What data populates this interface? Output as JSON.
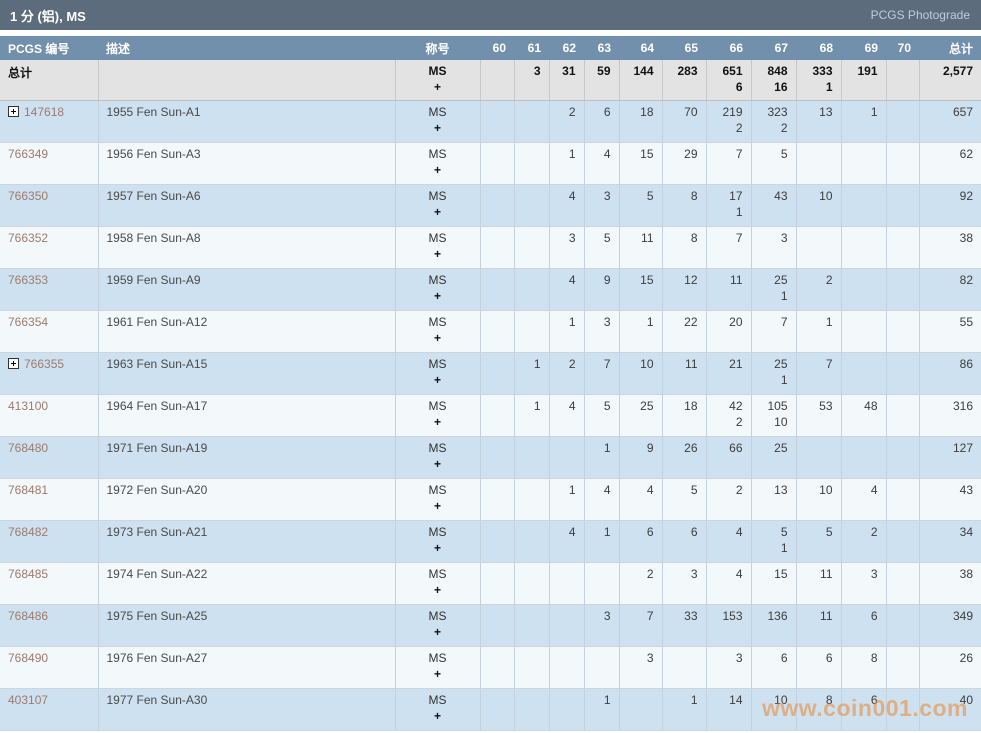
{
  "title_bar": {
    "title": "1 分 (铝), MS",
    "photograde_link": "PCGS Photograde"
  },
  "table": {
    "columns": {
      "pcgs_no": "PCGS 编号",
      "description": "描述",
      "designation": "称号",
      "grades": [
        "60",
        "61",
        "62",
        "63",
        "64",
        "65",
        "66",
        "67",
        "68",
        "69",
        "70"
      ],
      "total": "总计"
    },
    "designation_value": {
      "line1": "MS",
      "line2": "+"
    },
    "totals_row": {
      "label": "总计",
      "grades": [
        [
          "",
          ""
        ],
        [
          "3",
          ""
        ],
        [
          "31",
          ""
        ],
        [
          "59",
          ""
        ],
        [
          "144",
          ""
        ],
        [
          "283",
          ""
        ],
        [
          "651",
          "6"
        ],
        [
          "848",
          "16"
        ],
        [
          "333",
          "1"
        ],
        [
          "191",
          ""
        ],
        [
          "",
          ""
        ]
      ],
      "total": "2,577"
    },
    "rows": [
      {
        "pcgs_no": "147618",
        "expandable": true,
        "description": "1955 Fen Sun-A1",
        "grades": [
          [
            "",
            ""
          ],
          [
            "",
            ""
          ],
          [
            "2",
            ""
          ],
          [
            "6",
            ""
          ],
          [
            "18",
            ""
          ],
          [
            "70",
            ""
          ],
          [
            "219",
            "2"
          ],
          [
            "323",
            "2"
          ],
          [
            "13",
            ""
          ],
          [
            "1",
            ""
          ],
          [
            "",
            ""
          ]
        ],
        "total": "657"
      },
      {
        "pcgs_no": "766349",
        "expandable": false,
        "description": "1956 Fen Sun-A3",
        "grades": [
          [
            "",
            ""
          ],
          [
            "",
            ""
          ],
          [
            "1",
            ""
          ],
          [
            "4",
            ""
          ],
          [
            "15",
            ""
          ],
          [
            "29",
            ""
          ],
          [
            "7",
            ""
          ],
          [
            "5",
            ""
          ],
          [
            "",
            ""
          ],
          [
            "",
            ""
          ],
          [
            "",
            ""
          ]
        ],
        "total": "62"
      },
      {
        "pcgs_no": "766350",
        "expandable": false,
        "description": "1957 Fen Sun-A6",
        "grades": [
          [
            "",
            ""
          ],
          [
            "",
            ""
          ],
          [
            "4",
            ""
          ],
          [
            "3",
            ""
          ],
          [
            "5",
            ""
          ],
          [
            "8",
            ""
          ],
          [
            "17",
            "1"
          ],
          [
            "43",
            ""
          ],
          [
            "10",
            ""
          ],
          [
            "",
            ""
          ],
          [
            "",
            ""
          ]
        ],
        "total": "92"
      },
      {
        "pcgs_no": "766352",
        "expandable": false,
        "description": "1958 Fen Sun-A8",
        "grades": [
          [
            "",
            ""
          ],
          [
            "",
            ""
          ],
          [
            "3",
            ""
          ],
          [
            "5",
            ""
          ],
          [
            "11",
            ""
          ],
          [
            "8",
            ""
          ],
          [
            "7",
            ""
          ],
          [
            "3",
            ""
          ],
          [
            "",
            ""
          ],
          [
            "",
            ""
          ],
          [
            "",
            ""
          ]
        ],
        "total": "38"
      },
      {
        "pcgs_no": "766353",
        "expandable": false,
        "description": "1959 Fen Sun-A9",
        "grades": [
          [
            "",
            ""
          ],
          [
            "",
            ""
          ],
          [
            "4",
            ""
          ],
          [
            "9",
            ""
          ],
          [
            "15",
            ""
          ],
          [
            "12",
            ""
          ],
          [
            "11",
            ""
          ],
          [
            "25",
            "1"
          ],
          [
            "2",
            ""
          ],
          [
            "",
            ""
          ],
          [
            "",
            ""
          ]
        ],
        "total": "82"
      },
      {
        "pcgs_no": "766354",
        "expandable": false,
        "description": "1961 Fen Sun-A12",
        "grades": [
          [
            "",
            ""
          ],
          [
            "",
            ""
          ],
          [
            "1",
            ""
          ],
          [
            "3",
            ""
          ],
          [
            "1",
            ""
          ],
          [
            "22",
            ""
          ],
          [
            "20",
            ""
          ],
          [
            "7",
            ""
          ],
          [
            "1",
            ""
          ],
          [
            "",
            ""
          ],
          [
            "",
            ""
          ]
        ],
        "total": "55"
      },
      {
        "pcgs_no": "766355",
        "expandable": true,
        "description": "1963 Fen Sun-A15",
        "grades": [
          [
            "",
            ""
          ],
          [
            "1",
            ""
          ],
          [
            "2",
            ""
          ],
          [
            "7",
            ""
          ],
          [
            "10",
            ""
          ],
          [
            "11",
            ""
          ],
          [
            "21",
            ""
          ],
          [
            "25",
            "1"
          ],
          [
            "7",
            ""
          ],
          [
            "",
            ""
          ],
          [
            "",
            ""
          ]
        ],
        "total": "86"
      },
      {
        "pcgs_no": "413100",
        "expandable": false,
        "description": "1964 Fen Sun-A17",
        "grades": [
          [
            "",
            ""
          ],
          [
            "1",
            ""
          ],
          [
            "4",
            ""
          ],
          [
            "5",
            ""
          ],
          [
            "25",
            ""
          ],
          [
            "18",
            ""
          ],
          [
            "42",
            "2"
          ],
          [
            "105",
            "10"
          ],
          [
            "53",
            ""
          ],
          [
            "48",
            ""
          ],
          [
            "",
            ""
          ]
        ],
        "total": "316"
      },
      {
        "pcgs_no": "768480",
        "expandable": false,
        "description": "1971 Fen Sun-A19",
        "grades": [
          [
            "",
            ""
          ],
          [
            "",
            ""
          ],
          [
            "",
            ""
          ],
          [
            "1",
            ""
          ],
          [
            "9",
            ""
          ],
          [
            "26",
            ""
          ],
          [
            "66",
            ""
          ],
          [
            "25",
            ""
          ],
          [
            "",
            ""
          ],
          [
            "",
            ""
          ],
          [
            "",
            ""
          ]
        ],
        "total": "127"
      },
      {
        "pcgs_no": "768481",
        "expandable": false,
        "description": "1972 Fen Sun-A20",
        "grades": [
          [
            "",
            ""
          ],
          [
            "",
            ""
          ],
          [
            "1",
            ""
          ],
          [
            "4",
            ""
          ],
          [
            "4",
            ""
          ],
          [
            "5",
            ""
          ],
          [
            "2",
            ""
          ],
          [
            "13",
            ""
          ],
          [
            "10",
            ""
          ],
          [
            "4",
            ""
          ],
          [
            "",
            ""
          ]
        ],
        "total": "43"
      },
      {
        "pcgs_no": "768482",
        "expandable": false,
        "description": "1973 Fen Sun-A21",
        "grades": [
          [
            "",
            ""
          ],
          [
            "",
            ""
          ],
          [
            "4",
            ""
          ],
          [
            "1",
            ""
          ],
          [
            "6",
            ""
          ],
          [
            "6",
            ""
          ],
          [
            "4",
            ""
          ],
          [
            "5",
            "1"
          ],
          [
            "5",
            ""
          ],
          [
            "2",
            ""
          ],
          [
            "",
            ""
          ]
        ],
        "total": "34"
      },
      {
        "pcgs_no": "768485",
        "expandable": false,
        "description": "1974 Fen Sun-A22",
        "grades": [
          [
            "",
            ""
          ],
          [
            "",
            ""
          ],
          [
            "",
            ""
          ],
          [
            "",
            ""
          ],
          [
            "2",
            ""
          ],
          [
            "3",
            ""
          ],
          [
            "4",
            ""
          ],
          [
            "15",
            ""
          ],
          [
            "11",
            ""
          ],
          [
            "3",
            ""
          ],
          [
            "",
            ""
          ]
        ],
        "total": "38"
      },
      {
        "pcgs_no": "768486",
        "expandable": false,
        "description": "1975 Fen Sun-A25",
        "grades": [
          [
            "",
            ""
          ],
          [
            "",
            ""
          ],
          [
            "",
            ""
          ],
          [
            "3",
            ""
          ],
          [
            "7",
            ""
          ],
          [
            "33",
            ""
          ],
          [
            "153",
            ""
          ],
          [
            "136",
            ""
          ],
          [
            "11",
            ""
          ],
          [
            "6",
            ""
          ],
          [
            "",
            ""
          ]
        ],
        "total": "349"
      },
      {
        "pcgs_no": "768490",
        "expandable": false,
        "description": "1976 Fen Sun-A27",
        "grades": [
          [
            "",
            ""
          ],
          [
            "",
            ""
          ],
          [
            "",
            ""
          ],
          [
            "",
            ""
          ],
          [
            "3",
            ""
          ],
          [
            "",
            ""
          ],
          [
            "3",
            ""
          ],
          [
            "6",
            ""
          ],
          [
            "6",
            ""
          ],
          [
            "8",
            ""
          ],
          [
            "",
            ""
          ]
        ],
        "total": "26"
      },
      {
        "pcgs_no": "403107",
        "expandable": false,
        "description": "1977 Fen Sun-A30",
        "grades": [
          [
            "",
            ""
          ],
          [
            "",
            ""
          ],
          [
            "",
            ""
          ],
          [
            "1",
            ""
          ],
          [
            "",
            ""
          ],
          [
            "1",
            ""
          ],
          [
            "14",
            ""
          ],
          [
            "10",
            ""
          ],
          [
            "8",
            ""
          ],
          [
            "6",
            ""
          ],
          [
            "",
            ""
          ]
        ],
        "total": "40"
      }
    ]
  },
  "watermark": "www.coin001.com",
  "colors": {
    "title_bar_bg": "#5c6c7d",
    "header_bg": "#7290ab",
    "total_row_bg": "#e3e3e3",
    "row_blue": "#cee1f0",
    "row_light": "#f3f8fb",
    "pcgs_number": "#9d7b6c",
    "watermark_orange": "#e98d3c"
  }
}
